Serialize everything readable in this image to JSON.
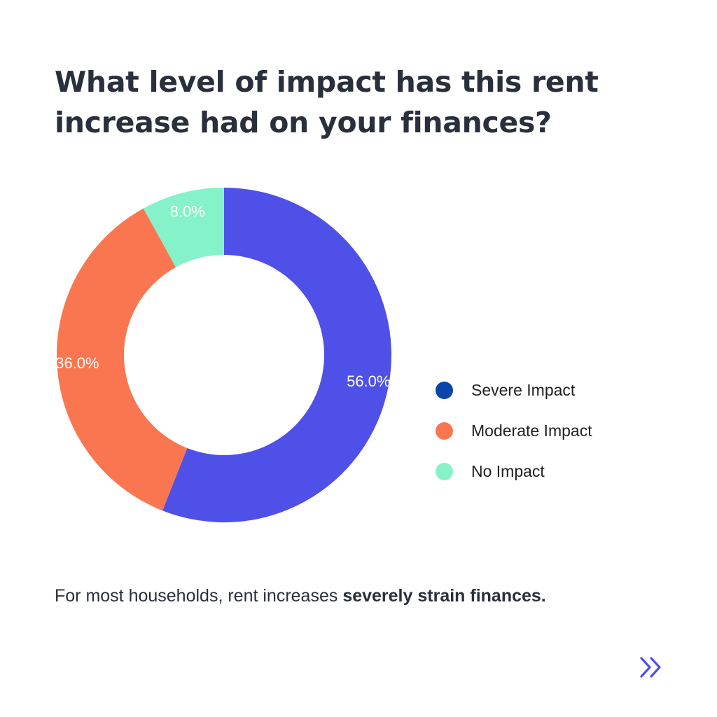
{
  "title": "What level of impact has this rent increase had on your finances?",
  "caption": {
    "text": "For most households, rent increases ",
    "emphasis": "severely strain finances."
  },
  "chart_data": {
    "type": "pie",
    "donut": true,
    "slices": [
      {
        "label": "Severe Impact",
        "value": 56.0,
        "display": "56.0%",
        "color": "#4f50e8"
      },
      {
        "label": "Moderate Impact",
        "value": 36.0,
        "display": "36.0%",
        "color": "#f97650"
      },
      {
        "label": "No Impact",
        "value": 8.0,
        "display": "8.0%",
        "color": "#86f2c9"
      }
    ],
    "legend": {
      "position": "right",
      "items": [
        {
          "label": "Severe Impact",
          "color": "#0a46a8"
        },
        {
          "label": "Moderate Impact",
          "color": "#f97650"
        },
        {
          "label": "No Impact",
          "color": "#86f2c9"
        }
      ]
    }
  },
  "navigation": {
    "next_icon": "double-chevron-right-icon",
    "icon_color": "#4f50e8"
  }
}
